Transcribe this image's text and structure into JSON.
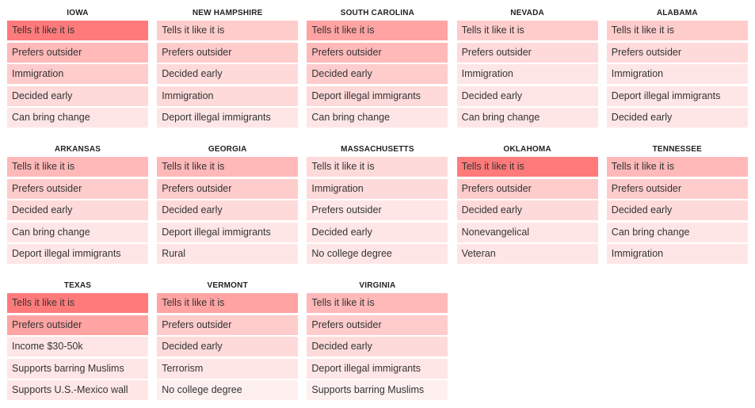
{
  "chart_data": {
    "type": "table",
    "colors": {
      "strongest": "#ff7b7b",
      "strong": "#ffa3a3",
      "medium_strong": "#ffb9b9",
      "medium": "#ffcccc",
      "light": "#ffdada",
      "lighter": "#ffe6e6",
      "lightest": "#fff0f0"
    },
    "states": [
      {
        "name": "IOWA",
        "items": [
          {
            "label": "Tells it like it is",
            "shade": "strongest"
          },
          {
            "label": "Prefers outsider",
            "shade": "medium_strong"
          },
          {
            "label": "Immigration",
            "shade": "medium"
          },
          {
            "label": "Decided early",
            "shade": "light"
          },
          {
            "label": "Can bring change",
            "shade": "lighter"
          }
        ]
      },
      {
        "name": "NEW HAMPSHIRE",
        "items": [
          {
            "label": "Tells it like it is",
            "shade": "medium"
          },
          {
            "label": "Prefers outsider",
            "shade": "medium"
          },
          {
            "label": "Decided early",
            "shade": "light"
          },
          {
            "label": "Immigration",
            "shade": "light"
          },
          {
            "label": "Deport illegal immigrants",
            "shade": "lighter"
          }
        ]
      },
      {
        "name": "SOUTH CAROLINA",
        "items": [
          {
            "label": "Tells it like it is",
            "shade": "strong"
          },
          {
            "label": "Prefers outsider",
            "shade": "medium_strong"
          },
          {
            "label": "Decided early",
            "shade": "medium"
          },
          {
            "label": "Deport illegal immigrants",
            "shade": "light"
          },
          {
            "label": "Can bring change",
            "shade": "lighter"
          }
        ]
      },
      {
        "name": "NEVADA",
        "items": [
          {
            "label": "Tells it like it is",
            "shade": "medium"
          },
          {
            "label": "Prefers outsider",
            "shade": "light"
          },
          {
            "label": "Immigration",
            "shade": "lighter"
          },
          {
            "label": "Decided early",
            "shade": "lighter"
          },
          {
            "label": "Can bring change",
            "shade": "lighter"
          }
        ]
      },
      {
        "name": "ALABAMA",
        "items": [
          {
            "label": "Tells it like it is",
            "shade": "medium"
          },
          {
            "label": "Prefers outsider",
            "shade": "light"
          },
          {
            "label": "Immigration",
            "shade": "lighter"
          },
          {
            "label": "Deport illegal immigrants",
            "shade": "lighter"
          },
          {
            "label": "Decided early",
            "shade": "lighter"
          }
        ]
      },
      {
        "name": "ARKANSAS",
        "items": [
          {
            "label": "Tells it like it is",
            "shade": "medium_strong"
          },
          {
            "label": "Prefers outsider",
            "shade": "medium"
          },
          {
            "label": "Decided early",
            "shade": "light"
          },
          {
            "label": "Can bring change",
            "shade": "lighter"
          },
          {
            "label": "Deport illegal immigrants",
            "shade": "lighter"
          }
        ]
      },
      {
        "name": "GEORGIA",
        "items": [
          {
            "label": "Tells it like it is",
            "shade": "medium_strong"
          },
          {
            "label": "Prefers outsider",
            "shade": "medium"
          },
          {
            "label": "Decided early",
            "shade": "light"
          },
          {
            "label": "Deport illegal immigrants",
            "shade": "lighter"
          },
          {
            "label": "Rural",
            "shade": "lighter"
          }
        ]
      },
      {
        "name": "MASSACHUSETTS",
        "items": [
          {
            "label": "Tells it like it is",
            "shade": "light"
          },
          {
            "label": "Immigration",
            "shade": "light"
          },
          {
            "label": "Prefers outsider",
            "shade": "lighter"
          },
          {
            "label": "Decided early",
            "shade": "lighter"
          },
          {
            "label": "No college degree",
            "shade": "lighter"
          }
        ]
      },
      {
        "name": "OKLAHOMA",
        "items": [
          {
            "label": "Tells it like it is",
            "shade": "strongest"
          },
          {
            "label": "Prefers outsider",
            "shade": "medium"
          },
          {
            "label": "Decided early",
            "shade": "light"
          },
          {
            "label": "Nonevangelical",
            "shade": "lighter"
          },
          {
            "label": "Veteran",
            "shade": "lighter"
          }
        ]
      },
      {
        "name": "TENNESSEE",
        "items": [
          {
            "label": "Tells it like it is",
            "shade": "medium_strong"
          },
          {
            "label": "Prefers outsider",
            "shade": "medium"
          },
          {
            "label": "Decided early",
            "shade": "light"
          },
          {
            "label": "Can bring change",
            "shade": "lighter"
          },
          {
            "label": "Immigration",
            "shade": "lighter"
          }
        ]
      },
      {
        "name": "TEXAS",
        "items": [
          {
            "label": "Tells it like it is",
            "shade": "strongest"
          },
          {
            "label": "Prefers outsider",
            "shade": "strong"
          },
          {
            "label": "Income $30-50k",
            "shade": "lighter"
          },
          {
            "label": "Supports barring Muslims",
            "shade": "lighter"
          },
          {
            "label": "Supports U.S.-Mexico wall",
            "shade": "lighter"
          }
        ]
      },
      {
        "name": "VERMONT",
        "items": [
          {
            "label": "Tells it like it is",
            "shade": "strong"
          },
          {
            "label": "Prefers outsider",
            "shade": "medium"
          },
          {
            "label": "Decided early",
            "shade": "light"
          },
          {
            "label": "Terrorism",
            "shade": "lighter"
          },
          {
            "label": "No college degree",
            "shade": "lightest"
          }
        ]
      },
      {
        "name": "VIRGINIA",
        "items": [
          {
            "label": "Tells it like it is",
            "shade": "medium_strong"
          },
          {
            "label": "Prefers outsider",
            "shade": "medium"
          },
          {
            "label": "Decided early",
            "shade": "light"
          },
          {
            "label": "Deport illegal immigrants",
            "shade": "lighter"
          },
          {
            "label": "Supports barring Muslims",
            "shade": "lightest"
          }
        ]
      }
    ]
  }
}
